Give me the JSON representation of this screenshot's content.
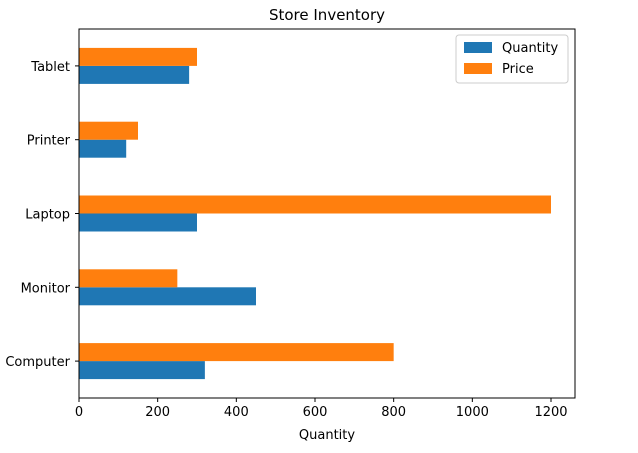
{
  "chart_data": {
    "type": "bar",
    "orientation": "horizontal",
    "title": "Store Inventory",
    "xlabel": "Quantity",
    "ylabel": "",
    "categories": [
      "Computer",
      "Monitor",
      "Laptop",
      "Printer",
      "Tablet"
    ],
    "series": [
      {
        "name": "Quantity",
        "color": "#1f77b4",
        "values": [
          320,
          450,
          300,
          120,
          280
        ]
      },
      {
        "name": "Price",
        "color": "#ff7f0e",
        "values": [
          800,
          250,
          1200,
          150,
          300
        ]
      }
    ],
    "xlim": [
      0,
      1260
    ],
    "xticks": [
      0,
      200,
      400,
      600,
      800,
      1000,
      1200
    ],
    "grid": false,
    "legend_position": "top-right"
  }
}
